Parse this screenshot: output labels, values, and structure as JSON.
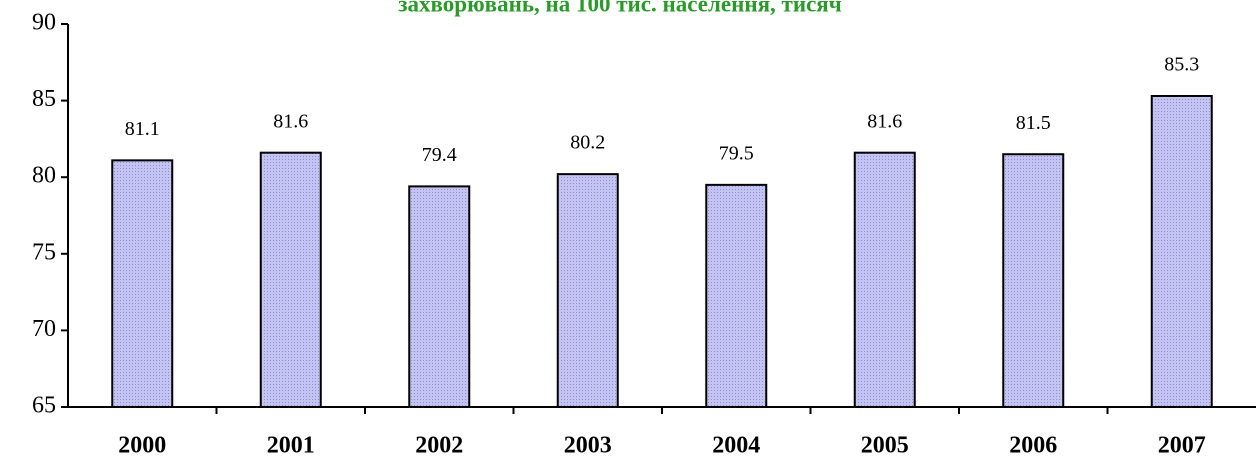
{
  "chart_data": {
    "type": "bar",
    "title": "захворювань, на  100 тис. населення, тисяч",
    "categories": [
      "2000",
      "2001",
      "2002",
      "2003",
      "2004",
      "2005",
      "2006",
      "2007"
    ],
    "values": [
      81.1,
      81.6,
      79.4,
      80.2,
      79.5,
      81.6,
      81.5,
      85.3
    ],
    "color": "#b4b4ec",
    "ylim": [
      65,
      90
    ],
    "yticks": [
      65,
      70,
      75,
      80,
      85,
      90
    ],
    "grid": false
  }
}
